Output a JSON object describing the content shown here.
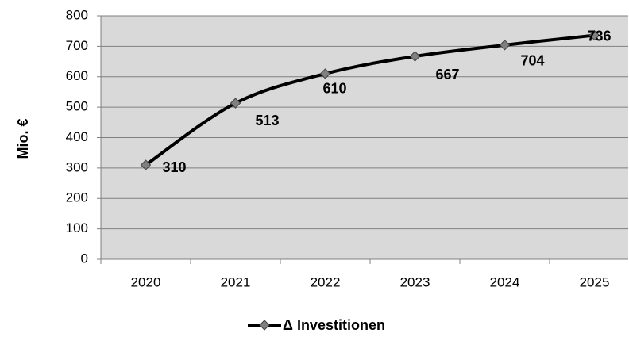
{
  "chart_data": {
    "type": "line",
    "y_label": "Mio. €",
    "categories": [
      "2020",
      "2021",
      "2022",
      "2023",
      "2024",
      "2025"
    ],
    "series": [
      {
        "name": "Δ Investitionen",
        "color": "#000000",
        "marker_color": "#808080",
        "values": [
          310,
          513,
          610,
          667,
          704,
          736
        ]
      }
    ],
    "ylim": [
      0,
      800
    ],
    "yticks": [
      0,
      100,
      200,
      300,
      400,
      500,
      600,
      700,
      800
    ],
    "grid": true,
    "legend": "bottom",
    "plot_background": "#d9d9d9"
  }
}
